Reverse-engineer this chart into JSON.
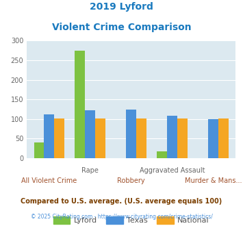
{
  "title_line1": "2019 Lyford",
  "title_line2": "Violent Crime Comparison",
  "title_color": "#1a7abf",
  "groups": [
    "All Violent Crime",
    "Rape",
    "Robbery",
    "Aggravated Assault",
    "Murder & Mans..."
  ],
  "lyford": [
    40,
    275,
    0,
    17,
    0
  ],
  "texas": [
    112,
    122,
    125,
    108,
    100
  ],
  "national": [
    102,
    102,
    101,
    102,
    102
  ],
  "lyford_color": "#7dc242",
  "texas_color": "#4a90d9",
  "national_color": "#f5a623",
  "ylim": [
    0,
    300
  ],
  "yticks": [
    0,
    50,
    100,
    150,
    200,
    250,
    300
  ],
  "bg_color": "#dce9f0",
  "legend_labels": [
    "Lyford",
    "Texas",
    "National"
  ],
  "footnote1": "Compared to U.S. average. (U.S. average equals 100)",
  "footnote2": "© 2025 CityRating.com - https://www.cityrating.com/crime-statistics/",
  "footnote1_color": "#7b3f00",
  "footnote2_color": "#4a90d9",
  "top_xlabels": [
    "",
    "Rape",
    "",
    "Aggravated Assault",
    ""
  ],
  "bottom_xlabels": [
    "All Violent Crime",
    "",
    "Robbery",
    "",
    "Murder & Mans..."
  ]
}
